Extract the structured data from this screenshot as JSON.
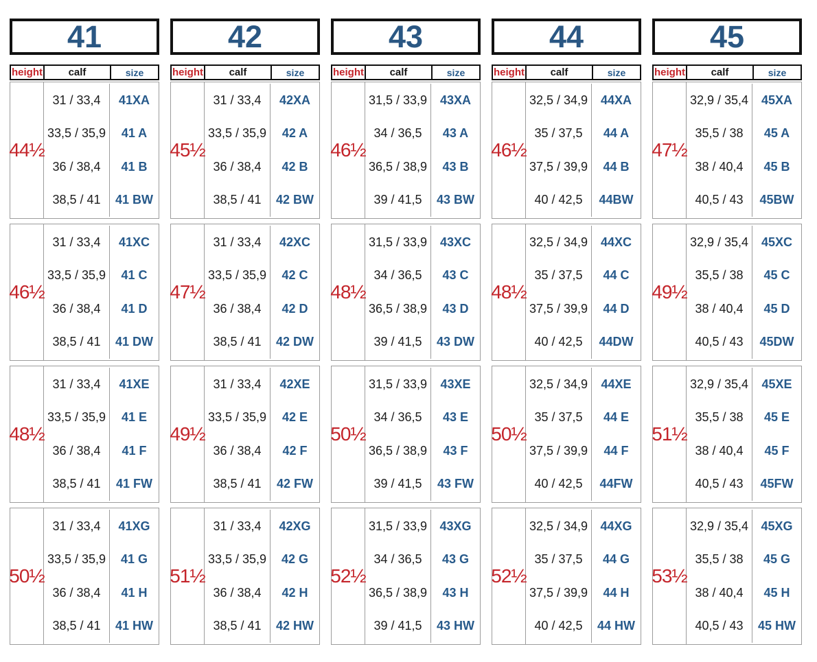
{
  "table": {
    "sub_headers": {
      "height": "height",
      "calf": "calf",
      "size": "size"
    },
    "colors": {
      "red_accent": "#c4252b",
      "blue_accent": "#275a8b",
      "header_blue": "#2a5783",
      "grid_gray": "#9c9c9c",
      "border_black": "#121212"
    },
    "columns": [
      {
        "shoe": "41",
        "blocks": [
          {
            "height": "44½",
            "rows": [
              {
                "calf": "31 / 33,4",
                "size": "41XA"
              },
              {
                "calf": "33,5 / 35,9",
                "size": "41 A"
              },
              {
                "calf": "36 / 38,4",
                "size": "41 B"
              },
              {
                "calf": "38,5 / 41",
                "size": "41 BW"
              }
            ]
          },
          {
            "height": "46½",
            "rows": [
              {
                "calf": "31 / 33,4",
                "size": "41XC"
              },
              {
                "calf": "33,5 / 35,9",
                "size": "41 C"
              },
              {
                "calf": "36 / 38,4",
                "size": "41 D"
              },
              {
                "calf": "38,5 / 41",
                "size": "41 DW"
              }
            ]
          },
          {
            "height": "48½",
            "rows": [
              {
                "calf": "31 / 33,4",
                "size": "41XE"
              },
              {
                "calf": "33,5 / 35,9",
                "size": "41 E"
              },
              {
                "calf": "36 / 38,4",
                "size": "41 F"
              },
              {
                "calf": "38,5 / 41",
                "size": "41 FW"
              }
            ]
          },
          {
            "height": "50½",
            "rows": [
              {
                "calf": "31 / 33,4",
                "size": "41XG"
              },
              {
                "calf": "33,5 / 35,9",
                "size": "41 G"
              },
              {
                "calf": "36 / 38,4",
                "size": "41 H"
              },
              {
                "calf": "38,5 / 41",
                "size": "41 HW"
              }
            ]
          }
        ]
      },
      {
        "shoe": "42",
        "blocks": [
          {
            "height": "45½",
            "rows": [
              {
                "calf": "31 / 33,4",
                "size": "42XA"
              },
              {
                "calf": "33,5 / 35,9",
                "size": "42 A"
              },
              {
                "calf": "36 / 38,4",
                "size": "42 B"
              },
              {
                "calf": "38,5 / 41",
                "size": "42 BW"
              }
            ]
          },
          {
            "height": "47½",
            "rows": [
              {
                "calf": "31 / 33,4",
                "size": "42XC"
              },
              {
                "calf": "33,5 / 35,9",
                "size": "42 C"
              },
              {
                "calf": "36 / 38,4",
                "size": "42 D"
              },
              {
                "calf": "38,5 / 41",
                "size": "42 DW"
              }
            ]
          },
          {
            "height": "49½",
            "rows": [
              {
                "calf": "31 / 33,4",
                "size": "42XE"
              },
              {
                "calf": "33,5 / 35,9",
                "size": "42 E"
              },
              {
                "calf": "36 / 38,4",
                "size": "42 F"
              },
              {
                "calf": "38,5 / 41",
                "size": "42 FW"
              }
            ]
          },
          {
            "height": "51½",
            "rows": [
              {
                "calf": "31 / 33,4",
                "size": "42XG"
              },
              {
                "calf": "33,5 / 35,9",
                "size": "42 G"
              },
              {
                "calf": "36 / 38,4",
                "size": "42 H"
              },
              {
                "calf": "38,5 / 41",
                "size": "42 HW"
              }
            ]
          }
        ]
      },
      {
        "shoe": "43",
        "blocks": [
          {
            "height": "46½",
            "rows": [
              {
                "calf": "31,5 / 33,9",
                "size": "43XA"
              },
              {
                "calf": "34 / 36,5",
                "size": "43 A"
              },
              {
                "calf": "36,5 / 38,9",
                "size": "43 B"
              },
              {
                "calf": "39 / 41,5",
                "size": "43 BW"
              }
            ]
          },
          {
            "height": "48½",
            "rows": [
              {
                "calf": "31,5 / 33,9",
                "size": "43XC"
              },
              {
                "calf": "34 / 36,5",
                "size": "43 C"
              },
              {
                "calf": "36,5 / 38,9",
                "size": "43 D"
              },
              {
                "calf": "39 / 41,5",
                "size": "43 DW"
              }
            ]
          },
          {
            "height": "50½",
            "rows": [
              {
                "calf": "31,5 / 33,9",
                "size": "43XE"
              },
              {
                "calf": "34 / 36,5",
                "size": "43 E"
              },
              {
                "calf": "36,5 / 38,9",
                "size": "43 F"
              },
              {
                "calf": "39 / 41,5",
                "size": "43 FW"
              }
            ]
          },
          {
            "height": "52½",
            "rows": [
              {
                "calf": "31,5 / 33,9",
                "size": "43XG"
              },
              {
                "calf": "34 / 36,5",
                "size": "43 G"
              },
              {
                "calf": "36,5 / 38,9",
                "size": "43 H"
              },
              {
                "calf": "39 / 41,5",
                "size": "43 HW"
              }
            ]
          }
        ]
      },
      {
        "shoe": "44",
        "blocks": [
          {
            "height": "46½",
            "rows": [
              {
                "calf": "32,5 / 34,9",
                "size": "44XA"
              },
              {
                "calf": "35 / 37,5",
                "size": "44 A"
              },
              {
                "calf": "37,5 / 39,9",
                "size": "44 B"
              },
              {
                "calf": "40 / 42,5",
                "size": "44BW"
              }
            ]
          },
          {
            "height": "48½",
            "rows": [
              {
                "calf": "32,5 / 34,9",
                "size": "44XC"
              },
              {
                "calf": "35 / 37,5",
                "size": "44 C"
              },
              {
                "calf": "37,5 / 39,9",
                "size": "44 D"
              },
              {
                "calf": "40 / 42,5",
                "size": "44DW"
              }
            ]
          },
          {
            "height": "50½",
            "rows": [
              {
                "calf": "32,5 / 34,9",
                "size": "44XE"
              },
              {
                "calf": "35 / 37,5",
                "size": "44 E"
              },
              {
                "calf": "37,5 / 39,9",
                "size": "44 F"
              },
              {
                "calf": "40 / 42,5",
                "size": "44FW"
              }
            ]
          },
          {
            "height": "52½",
            "rows": [
              {
                "calf": "32,5 / 34,9",
                "size": "44XG"
              },
              {
                "calf": "35 / 37,5",
                "size": "44 G"
              },
              {
                "calf": "37,5 / 39,9",
                "size": "44 H"
              },
              {
                "calf": "40 / 42,5",
                "size": "44 HW"
              }
            ]
          }
        ]
      },
      {
        "shoe": "45",
        "blocks": [
          {
            "height": "47½",
            "rows": [
              {
                "calf": "32,9 / 35,4",
                "size": "45XA"
              },
              {
                "calf": "35,5 / 38",
                "size": "45 A"
              },
              {
                "calf": "38 / 40,4",
                "size": "45 B"
              },
              {
                "calf": "40,5 / 43",
                "size": "45BW"
              }
            ]
          },
          {
            "height": "49½",
            "rows": [
              {
                "calf": "32,9 / 35,4",
                "size": "45XC"
              },
              {
                "calf": "35,5 / 38",
                "size": "45 C"
              },
              {
                "calf": "38 / 40,4",
                "size": "45 D"
              },
              {
                "calf": "40,5 / 43",
                "size": "45DW"
              }
            ]
          },
          {
            "height": "51½",
            "rows": [
              {
                "calf": "32,9 / 35,4",
                "size": "45XE"
              },
              {
                "calf": "35,5 / 38",
                "size": "45 E"
              },
              {
                "calf": "38 / 40,4",
                "size": "45 F"
              },
              {
                "calf": "40,5 / 43",
                "size": "45FW"
              }
            ]
          },
          {
            "height": "53½",
            "rows": [
              {
                "calf": "32,9 / 35,4",
                "size": "45XG"
              },
              {
                "calf": "35,5 / 38",
                "size": "45 G"
              },
              {
                "calf": "38 / 40,4",
                "size": "45 H"
              },
              {
                "calf": "40,5 / 43",
                "size": "45 HW"
              }
            ]
          }
        ]
      }
    ]
  }
}
